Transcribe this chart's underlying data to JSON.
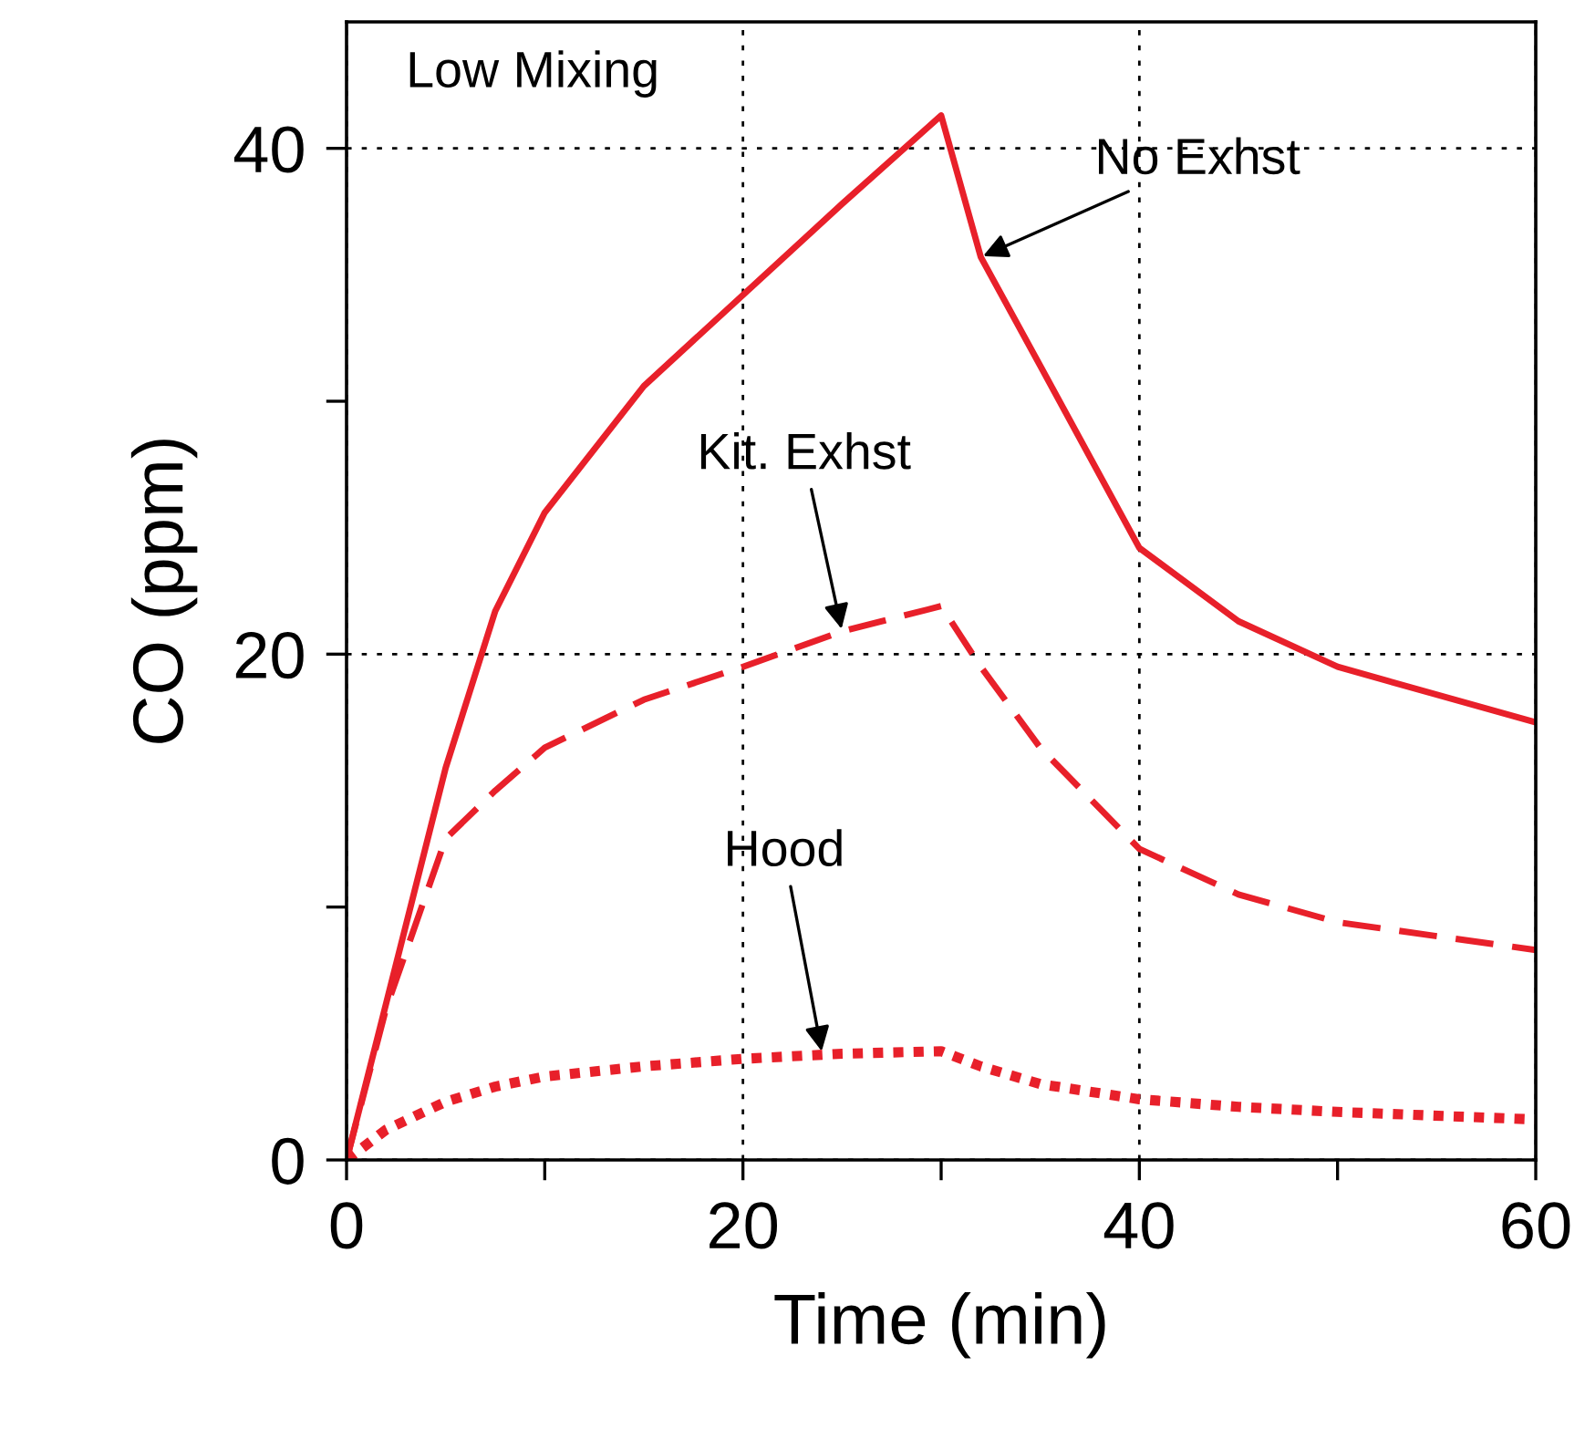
{
  "chart_data": {
    "type": "line",
    "xlabel": "Time (min)",
    "ylabel": "CO (ppm)",
    "xlim": [
      0,
      60
    ],
    "ylim": [
      0,
      45
    ],
    "xticks": [
      0,
      {
        "value": 10,
        "label": null
      },
      20,
      {
        "value": 30,
        "label": null
      },
      40,
      {
        "value": 50,
        "label": null
      },
      60
    ],
    "yticks": [
      0,
      {
        "value": 10,
        "label": null
      },
      20,
      {
        "value": 30,
        "label": null
      },
      40
    ],
    "grid": true,
    "legend": false,
    "marker": "none",
    "x": [
      0,
      2,
      5,
      7.5,
      10,
      15,
      20,
      25,
      30,
      32,
      35,
      40,
      45,
      50,
      60
    ],
    "series": [
      {
        "color": "#e8202a",
        "line_style": "solid",
        "values": [
          0,
          6.2,
          15.5,
          21.7,
          25.6,
          30.6,
          34.2,
          37.8,
          41.3,
          35.7,
          31.4,
          24.2,
          21.3,
          19.5,
          17.3
        ]
      },
      {
        "color": "#e8202a",
        "line_style": "dashed",
        "values": [
          0,
          6,
          12.7,
          14.6,
          16.3,
          18.2,
          19.5,
          20.9,
          21.9,
          19.5,
          16.3,
          12.3,
          10.5,
          9.4,
          8.3
        ]
      },
      {
        "color": "#e8202a",
        "line_style": "dotted",
        "values": [
          0,
          1.2,
          2.3,
          2.9,
          3.3,
          3.7,
          4.0,
          4.2,
          4.3,
          3.7,
          3.0,
          2.4,
          2.1,
          1.9,
          1.6
        ]
      }
    ],
    "annotations": [
      "Low Mixing",
      {
        "text": "No Exhst",
        "x": 32,
        "y": 35.7
      },
      {
        "text": "Kit. Exhst",
        "x": 25,
        "y": 20.9
      },
      {
        "text": "Hood",
        "x": 24,
        "y": 4.2
      }
    ]
  }
}
